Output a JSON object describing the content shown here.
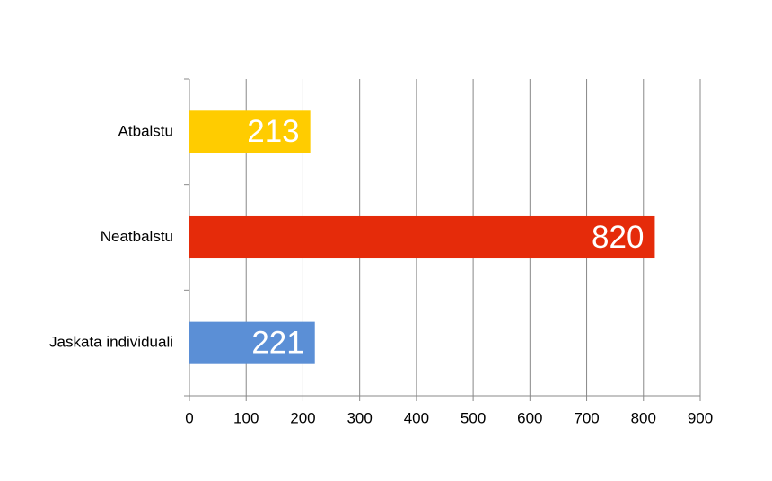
{
  "chart_data": {
    "type": "bar",
    "orientation": "horizontal",
    "categories": [
      "Atbalstu",
      "Neatbalstu",
      "Jāskata individuāli"
    ],
    "values": [
      213,
      820,
      221
    ],
    "colors": [
      "#ffcc00",
      "#e52b0a",
      "#5b8fd6"
    ],
    "xlim": [
      0,
      900
    ],
    "xticks": [
      0,
      100,
      200,
      300,
      400,
      500,
      600,
      700,
      800,
      900
    ],
    "grid": true,
    "data_labels": true
  }
}
